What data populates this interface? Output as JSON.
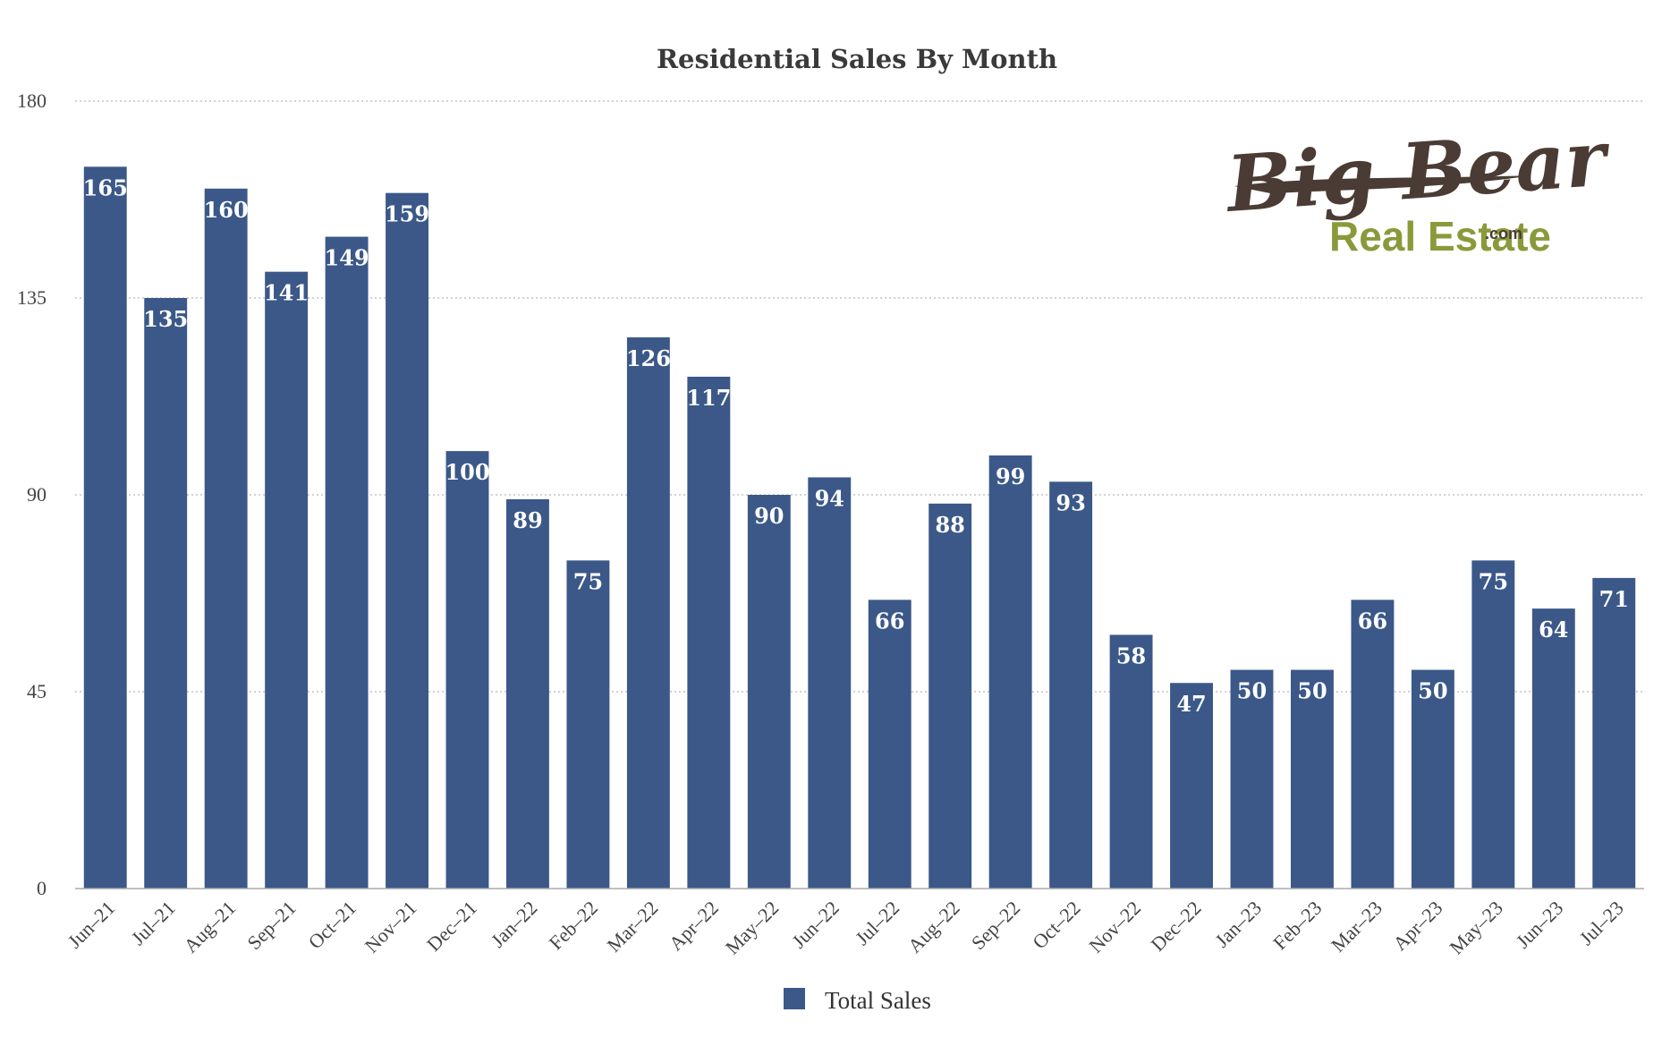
{
  "chart_data": {
    "type": "bar",
    "title": "Residential Sales By Month",
    "categories": [
      "Jun–21",
      "Jul–21",
      "Aug–21",
      "Sep–21",
      "Oct–21",
      "Nov–21",
      "Dec–21",
      "Jan–22",
      "Feb–22",
      "Mar–22",
      "Apr–22",
      "May–22",
      "Jun–22",
      "Jul–22",
      "Aug–22",
      "Sep–22",
      "Oct–22",
      "Nov–22",
      "Dec–22",
      "Jan–23",
      "Feb–23",
      "Mar–23",
      "Apr–23",
      "May–23",
      "Jun–23",
      "Jul–23"
    ],
    "series": [
      {
        "name": "Total Sales",
        "color": "#3b5888",
        "values": [
          165,
          135,
          160,
          141,
          149,
          159,
          100,
          89,
          75,
          126,
          117,
          90,
          94,
          66,
          88,
          99,
          93,
          58,
          47,
          50,
          50,
          66,
          50,
          75,
          64,
          71
        ]
      }
    ],
    "xlabel": "",
    "ylabel": "",
    "ylim": [
      0,
      180
    ],
    "yticks": [
      0,
      45,
      90,
      135,
      180
    ],
    "grid": true,
    "legend": "bottom-center",
    "data_labels": true
  },
  "logo": {
    "line1": "Big Bear",
    "line2": "Real Estate",
    "suffix": ".com"
  }
}
